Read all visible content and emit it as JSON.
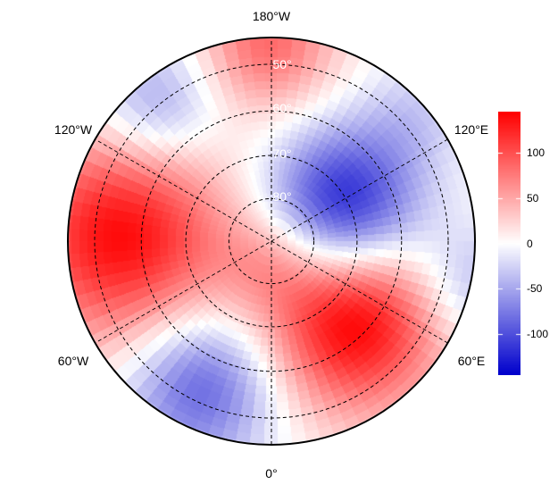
{
  "map": {
    "projection": "north polar stereographic",
    "longitude_labels": {
      "top": "180°W",
      "bottom": "0°",
      "upper_left": "120°W",
      "upper_right": "120°E",
      "lower_left": "60°W",
      "lower_right": "60°E"
    },
    "latitude_labels": [
      "50°",
      "60°",
      "70°",
      "80°"
    ]
  },
  "colorbar": {
    "min": -145,
    "max": 145,
    "ticks": [
      {
        "value": 100,
        "label": "100"
      },
      {
        "value": 50,
        "label": "50"
      },
      {
        "value": 0,
        "label": "0"
      },
      {
        "value": -50,
        "label": "-50"
      },
      {
        "value": -100,
        "label": "-100"
      }
    ],
    "colors": {
      "low": "#0000cc",
      "mid": "#ffffff",
      "high": "#ff0000"
    }
  }
}
